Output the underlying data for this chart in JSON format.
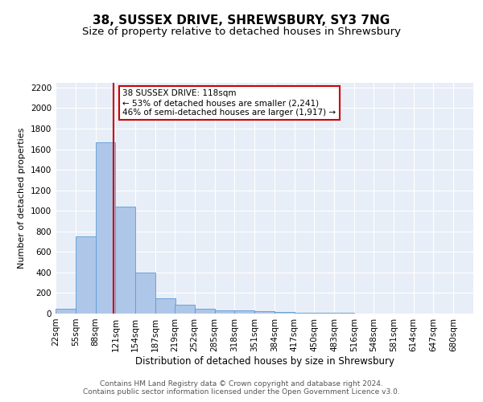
{
  "title": "38, SUSSEX DRIVE, SHREWSBURY, SY3 7NG",
  "subtitle": "Size of property relative to detached houses in Shrewsbury",
  "xlabel": "Distribution of detached houses by size in Shrewsbury",
  "ylabel": "Number of detached properties",
  "bin_labels": [
    "22sqm",
    "55sqm",
    "88sqm",
    "121sqm",
    "154sqm",
    "187sqm",
    "219sqm",
    "252sqm",
    "285sqm",
    "318sqm",
    "351sqm",
    "384sqm",
    "417sqm",
    "450sqm",
    "483sqm",
    "516sqm",
    "548sqm",
    "581sqm",
    "614sqm",
    "647sqm",
    "680sqm"
  ],
  "bin_edges": [
    22,
    55,
    88,
    121,
    154,
    187,
    219,
    252,
    285,
    318,
    351,
    384,
    417,
    450,
    483,
    516,
    548,
    581,
    614,
    647,
    680
  ],
  "bar_heights": [
    50,
    750,
    1670,
    1040,
    400,
    150,
    85,
    45,
    35,
    30,
    20,
    15,
    10,
    5,
    5,
    3,
    3,
    2,
    2,
    1
  ],
  "bar_color": "#aec6e8",
  "bar_edge_color": "#5b9bd5",
  "property_size": 118,
  "vline_color": "#cc0000",
  "annotation_line1": "38 SUSSEX DRIVE: 118sqm",
  "annotation_line2": "← 53% of detached houses are smaller (2,241)",
  "annotation_line3": "46% of semi-detached houses are larger (1,917) →",
  "annotation_box_color": "white",
  "annotation_box_edgecolor": "#cc0000",
  "ylim": [
    0,
    2250
  ],
  "yticks": [
    0,
    200,
    400,
    600,
    800,
    1000,
    1200,
    1400,
    1600,
    1800,
    2000,
    2200
  ],
  "background_color": "#e8eef7",
  "footer_text": "Contains HM Land Registry data © Crown copyright and database right 2024.\nContains public sector information licensed under the Open Government Licence v3.0.",
  "title_fontsize": 11,
  "subtitle_fontsize": 9.5,
  "xlabel_fontsize": 8.5,
  "ylabel_fontsize": 8,
  "tick_fontsize": 7.5,
  "annotation_fontsize": 7.5,
  "footer_fontsize": 6.5
}
